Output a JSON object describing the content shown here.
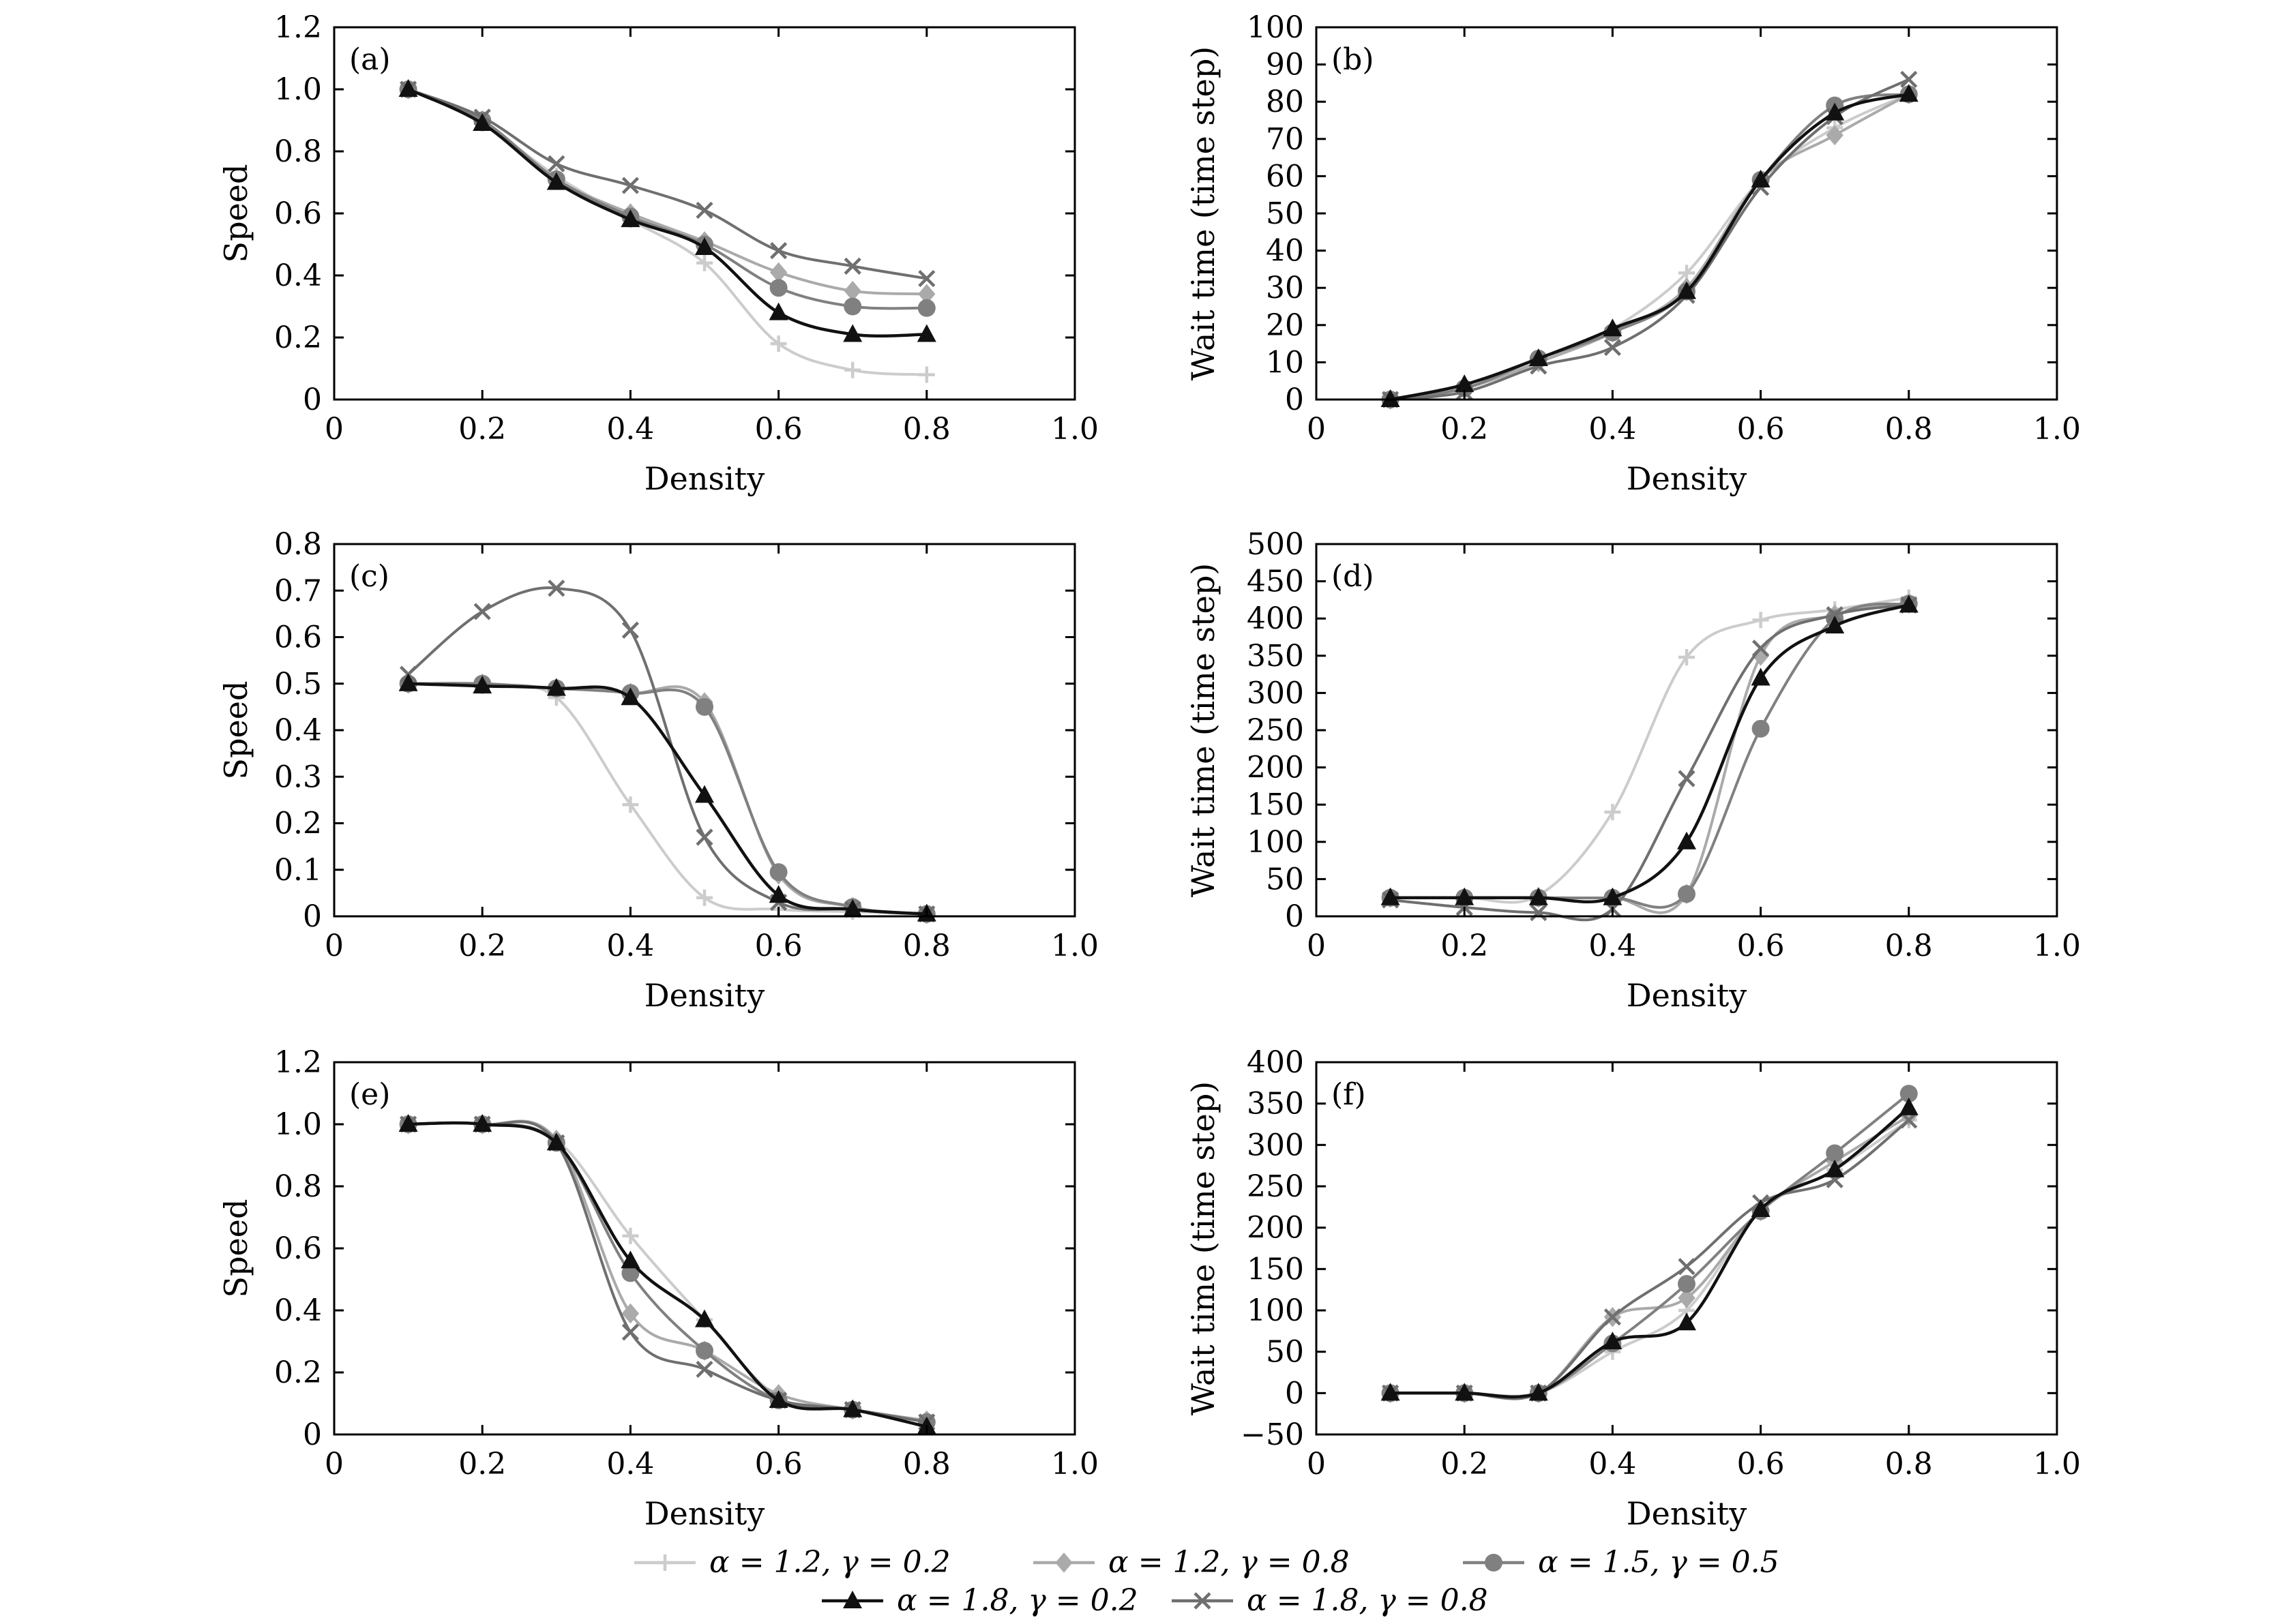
{
  "figure": {
    "legend": [
      {
        "key": "a12g02",
        "label": "α = 1.2, γ = 0.2",
        "color": "#cccccc",
        "marker": "plus"
      },
      {
        "key": "a12g08",
        "label": "α = 1.2, γ = 0.8",
        "color": "#aaaaaa",
        "marker": "diamond"
      },
      {
        "key": "a15g05",
        "label": "α = 1.5, γ = 0.5",
        "color": "#808080",
        "marker": "circle"
      },
      {
        "key": "a18g02",
        "label": "α = 1.8, γ = 0.2",
        "color": "#111111",
        "marker": "triangle"
      },
      {
        "key": "a18g08",
        "label": "α = 1.8, γ = 0.8",
        "color": "#6f6f6f",
        "marker": "cross"
      }
    ]
  },
  "chart_data": [
    {
      "panel": "(a)",
      "type": "line",
      "xlabel": "Density",
      "ylabel": "Speed",
      "xlim": [
        0,
        1.0
      ],
      "ylim": [
        0,
        1.2
      ],
      "xticks": [
        "0",
        "0.2",
        "0.4",
        "0.6",
        "0.8",
        "1.0"
      ],
      "yticks": [
        "0",
        "0.2",
        "0.4",
        "0.6",
        "0.8",
        "1.0",
        "1.2"
      ],
      "x": [
        0.1,
        0.2,
        0.3,
        0.4,
        0.5,
        0.6,
        0.7,
        0.8
      ],
      "series": [
        {
          "key": "a12g02",
          "values": [
            1.0,
            0.89,
            0.72,
            0.58,
            0.44,
            0.18,
            0.095,
            0.08
          ]
        },
        {
          "key": "a12g08",
          "values": [
            1.0,
            0.9,
            0.71,
            0.6,
            0.51,
            0.41,
            0.35,
            0.34
          ]
        },
        {
          "key": "a15g05",
          "values": [
            1.0,
            0.9,
            0.71,
            0.59,
            0.5,
            0.36,
            0.3,
            0.295
          ]
        },
        {
          "key": "a18g02",
          "values": [
            1.0,
            0.89,
            0.7,
            0.58,
            0.49,
            0.28,
            0.21,
            0.21
          ]
        },
        {
          "key": "a18g08",
          "values": [
            1.0,
            0.91,
            0.76,
            0.69,
            0.61,
            0.48,
            0.43,
            0.39
          ]
        }
      ]
    },
    {
      "panel": "(b)",
      "type": "line",
      "xlabel": "Density",
      "ylabel": "Wait time (time step)",
      "xlim": [
        0,
        1.0
      ],
      "ylim": [
        0,
        100
      ],
      "xticks": [
        "0",
        "0.2",
        "0.4",
        "0.6",
        "0.8",
        "1.0"
      ],
      "yticks": [
        "0",
        "10",
        "20",
        "30",
        "40",
        "50",
        "60",
        "70",
        "80",
        "90",
        "100"
      ],
      "x": [
        0.1,
        0.2,
        0.3,
        0.4,
        0.5,
        0.6,
        0.7,
        0.8
      ],
      "series": [
        {
          "key": "a12g02",
          "values": [
            0,
            3,
            10,
            19,
            34,
            59,
            73,
            82
          ]
        },
        {
          "key": "a12g08",
          "values": [
            0,
            3,
            10,
            18,
            30,
            59,
            71,
            82
          ]
        },
        {
          "key": "a15g05",
          "values": [
            0,
            3,
            11,
            18,
            29,
            59,
            79,
            82
          ]
        },
        {
          "key": "a18g02",
          "values": [
            0,
            4,
            11,
            19,
            29,
            59,
            77,
            82
          ]
        },
        {
          "key": "a18g08",
          "values": [
            0,
            2,
            9,
            14,
            28,
            57,
            76,
            86
          ]
        }
      ]
    },
    {
      "panel": "(c)",
      "type": "line",
      "xlabel": "Density",
      "ylabel": "Speed",
      "xlim": [
        0,
        1.0
      ],
      "ylim": [
        0,
        0.8
      ],
      "xticks": [
        "0",
        "0.2",
        "0.4",
        "0.6",
        "0.8",
        "1.0"
      ],
      "yticks": [
        "0",
        "0.1",
        "0.2",
        "0.3",
        "0.4",
        "0.5",
        "0.6",
        "0.7",
        "0.8"
      ],
      "x": [
        0.1,
        0.2,
        0.3,
        0.4,
        0.5,
        0.6,
        0.7,
        0.8
      ],
      "series": [
        {
          "key": "a12g02",
          "values": [
            0.5,
            0.495,
            0.47,
            0.24,
            0.04,
            0.015,
            0.01,
            0.005
          ]
        },
        {
          "key": "a12g08",
          "values": [
            0.5,
            0.5,
            0.49,
            0.48,
            0.46,
            0.09,
            0.02,
            0.005
          ]
        },
        {
          "key": "a15g05",
          "values": [
            0.5,
            0.5,
            0.49,
            0.48,
            0.45,
            0.095,
            0.02,
            0.005
          ]
        },
        {
          "key": "a18g02",
          "values": [
            0.5,
            0.495,
            0.49,
            0.47,
            0.26,
            0.045,
            0.015,
            0.005
          ]
        },
        {
          "key": "a18g08",
          "values": [
            0.52,
            0.655,
            0.705,
            0.615,
            0.17,
            0.03,
            0.015,
            0.005
          ]
        }
      ]
    },
    {
      "panel": "(d)",
      "type": "line",
      "xlabel": "Density",
      "ylabel": "Wait time (time step)",
      "xlim": [
        0,
        1.0
      ],
      "ylim": [
        0,
        500
      ],
      "xticks": [
        "0",
        "0.2",
        "0.4",
        "0.6",
        "0.8",
        "1.0"
      ],
      "yticks": [
        "0",
        "50",
        "100",
        "150",
        "200",
        "250",
        "300",
        "350",
        "400",
        "450",
        "500"
      ],
      "x": [
        0.1,
        0.2,
        0.3,
        0.4,
        0.5,
        0.6,
        0.7,
        0.8
      ],
      "series": [
        {
          "key": "a12g02",
          "values": [
            25,
            25,
            28,
            140,
            348,
            398,
            412,
            428
          ]
        },
        {
          "key": "a12g08",
          "values": [
            25,
            25,
            25,
            25,
            30,
            350,
            405,
            420
          ]
        },
        {
          "key": "a15g05",
          "values": [
            25,
            25,
            25,
            25,
            30,
            252,
            400,
            420
          ]
        },
        {
          "key": "a18g02",
          "values": [
            25,
            25,
            25,
            25,
            100,
            320,
            390,
            418
          ]
        },
        {
          "key": "a18g08",
          "values": [
            22,
            12,
            5,
            10,
            185,
            360,
            405,
            418
          ]
        }
      ]
    },
    {
      "panel": "(e)",
      "type": "line",
      "xlabel": "Density",
      "ylabel": "Speed",
      "xlim": [
        0,
        1.0
      ],
      "ylim": [
        0,
        1.2
      ],
      "xticks": [
        "0",
        "0.2",
        "0.4",
        "0.6",
        "0.8",
        "1.0"
      ],
      "yticks": [
        "0",
        "0.2",
        "0.4",
        "0.6",
        "0.8",
        "1.0",
        "1.2"
      ],
      "x": [
        0.1,
        0.2,
        0.3,
        0.4,
        0.5,
        0.6,
        0.7,
        0.8
      ],
      "series": [
        {
          "key": "a12g02",
          "values": [
            1.0,
            1.0,
            0.95,
            0.64,
            0.37,
            0.12,
            0.08,
            0.045
          ]
        },
        {
          "key": "a12g08",
          "values": [
            1.0,
            1.0,
            0.95,
            0.39,
            0.27,
            0.13,
            0.08,
            0.045
          ]
        },
        {
          "key": "a15g05",
          "values": [
            1.0,
            1.0,
            0.94,
            0.52,
            0.27,
            0.11,
            0.08,
            0.04
          ]
        },
        {
          "key": "a18g02",
          "values": [
            1.0,
            1.0,
            0.94,
            0.56,
            0.37,
            0.11,
            0.08,
            0.025
          ]
        },
        {
          "key": "a18g08",
          "values": [
            1.0,
            1.0,
            0.94,
            0.33,
            0.21,
            0.11,
            0.08,
            0.04
          ]
        }
      ]
    },
    {
      "panel": "(f)",
      "type": "line",
      "xlabel": "Density",
      "ylabel": "Wait time (time step)",
      "xlim": [
        0,
        1.0
      ],
      "ylim": [
        -50,
        400
      ],
      "xticks": [
        "0",
        "0.2",
        "0.4",
        "0.6",
        "0.8",
        "1.0"
      ],
      "yticks": [
        "−50",
        "0",
        "50",
        "100",
        "150",
        "200",
        "250",
        "300",
        "350",
        "400"
      ],
      "x": [
        0.1,
        0.2,
        0.3,
        0.4,
        0.5,
        0.6,
        0.7,
        0.8
      ],
      "series": [
        {
          "key": "a12g02",
          "values": [
            0,
            0,
            0,
            50,
            100,
            220,
            270,
            330
          ]
        },
        {
          "key": "a12g08",
          "values": [
            0,
            0,
            0,
            92,
            115,
            220,
            280,
            335
          ]
        },
        {
          "key": "a15g05",
          "values": [
            0,
            0,
            0,
            60,
            132,
            220,
            290,
            362
          ]
        },
        {
          "key": "a18g02",
          "values": [
            0,
            0,
            0,
            62,
            85,
            222,
            270,
            345
          ]
        },
        {
          "key": "a18g08",
          "values": [
            0,
            0,
            0,
            92,
            153,
            230,
            258,
            330
          ]
        }
      ]
    }
  ]
}
